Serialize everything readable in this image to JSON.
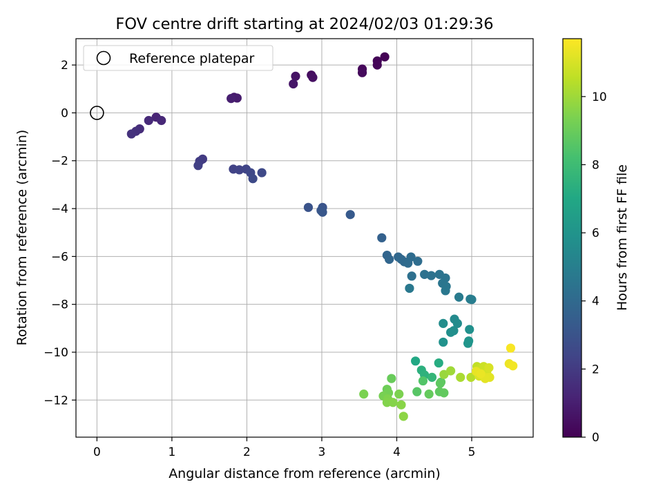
{
  "chart_data": {
    "type": "scatter",
    "title": "FOV centre drift starting at 2024/02/03 01:29:36",
    "xlabel": "Angular distance from reference (arcmin)",
    "ylabel": "Rotation from reference (arcmin)",
    "xlim": [
      -0.28,
      5.82
    ],
    "ylim": [
      -13.55,
      3.1
    ],
    "xticks": [
      0,
      1,
      2,
      3,
      4,
      5
    ],
    "yticks": [
      2,
      0,
      -2,
      -4,
      -6,
      -8,
      -10,
      -12
    ],
    "xtick_labels": [
      "0",
      "1",
      "2",
      "3",
      "4",
      "5"
    ],
    "ytick_labels": [
      "2",
      "0",
      "−2",
      "−4",
      "−6",
      "−8",
      "−10",
      "−12"
    ],
    "grid": true,
    "legend": {
      "position": "upper-left",
      "entries": [
        "Reference platepar"
      ]
    },
    "reference_point": {
      "name": "Reference platepar",
      "x": 0,
      "y": 0
    },
    "colorbar": {
      "label": "Hours from first FF file",
      "colormap": "viridis",
      "range": [
        0,
        11.7
      ],
      "ticks": [
        0,
        2,
        4,
        6,
        8,
        10
      ],
      "tick_labels": [
        "0",
        "2",
        "4",
        "6",
        "8",
        "10"
      ]
    },
    "series": [
      {
        "points": [
          [
            3.84,
            2.34,
            0.05
          ],
          [
            3.74,
            2.17,
            0.1
          ],
          [
            3.74,
            2.0,
            0.15
          ],
          [
            3.54,
            1.83,
            0.2
          ],
          [
            3.54,
            1.68,
            0.3
          ],
          [
            2.86,
            1.58,
            0.4
          ],
          [
            2.88,
            1.48,
            0.5
          ],
          [
            2.65,
            1.53,
            0.6
          ],
          [
            2.62,
            1.21,
            0.7
          ],
          [
            1.83,
            0.65,
            0.8
          ],
          [
            1.87,
            0.62,
            0.9
          ],
          [
            1.79,
            0.6,
            1.0
          ],
          [
            0.79,
            -0.18,
            1.2
          ],
          [
            0.86,
            -0.32,
            1.3
          ],
          [
            0.69,
            -0.32,
            1.4
          ],
          [
            0.57,
            -0.67,
            1.5
          ],
          [
            0.52,
            -0.77,
            1.6
          ],
          [
            0.46,
            -0.88,
            1.7
          ],
          [
            1.41,
            -1.93,
            2.0
          ],
          [
            1.37,
            -2.02,
            2.1
          ],
          [
            1.35,
            -2.2,
            2.2
          ],
          [
            1.82,
            -2.35,
            2.3
          ],
          [
            1.9,
            -2.38,
            2.35
          ],
          [
            1.99,
            -2.35,
            2.4
          ],
          [
            2.05,
            -2.5,
            2.5
          ],
          [
            2.2,
            -2.5,
            2.55
          ],
          [
            2.08,
            -2.75,
            2.6
          ],
          [
            2.82,
            -3.95,
            3.0
          ],
          [
            3.01,
            -3.95,
            3.05
          ],
          [
            2.99,
            -4.08,
            3.1
          ],
          [
            3.01,
            -4.15,
            3.15
          ],
          [
            3.38,
            -4.25,
            3.3
          ],
          [
            3.8,
            -5.22,
            3.6
          ],
          [
            3.87,
            -5.95,
            3.8
          ],
          [
            3.9,
            -6.12,
            3.85
          ],
          [
            4.02,
            -6.02,
            3.9
          ],
          [
            4.06,
            -6.12,
            3.95
          ],
          [
            4.1,
            -6.22,
            4.0
          ],
          [
            4.15,
            -6.28,
            4.05
          ],
          [
            4.19,
            -6.02,
            4.1
          ],
          [
            4.28,
            -6.2,
            4.15
          ],
          [
            4.2,
            -6.82,
            4.3
          ],
          [
            4.37,
            -6.75,
            4.35
          ],
          [
            4.46,
            -6.8,
            4.4
          ],
          [
            4.57,
            -6.75,
            4.45
          ],
          [
            4.65,
            -6.9,
            4.5
          ],
          [
            4.61,
            -7.12,
            4.55
          ],
          [
            4.66,
            -7.25,
            4.6
          ],
          [
            4.65,
            -7.43,
            4.65
          ],
          [
            4.17,
            -7.33,
            4.7
          ],
          [
            4.83,
            -7.7,
            4.8
          ],
          [
            4.98,
            -7.78,
            4.85
          ],
          [
            5.0,
            -7.8,
            4.9
          ],
          [
            4.77,
            -8.62,
            5.5
          ],
          [
            4.81,
            -8.8,
            5.6
          ],
          [
            4.62,
            -8.8,
            5.65
          ],
          [
            4.76,
            -9.1,
            5.7
          ],
          [
            4.72,
            -9.17,
            5.75
          ],
          [
            4.97,
            -9.05,
            5.8
          ],
          [
            4.62,
            -9.58,
            5.9
          ],
          [
            4.96,
            -9.53,
            6.0
          ],
          [
            4.95,
            -9.63,
            6.05
          ],
          [
            4.25,
            -10.37,
            7.0
          ],
          [
            4.56,
            -10.45,
            7.2
          ],
          [
            4.33,
            -10.75,
            7.4
          ],
          [
            4.37,
            -10.95,
            7.5
          ],
          [
            4.47,
            -11.05,
            7.7
          ],
          [
            4.35,
            -11.2,
            8.5
          ],
          [
            4.27,
            -11.65,
            8.6
          ],
          [
            4.59,
            -11.25,
            8.7
          ],
          [
            4.58,
            -11.3,
            8.75
          ],
          [
            4.57,
            -11.65,
            8.8
          ],
          [
            4.63,
            -11.7,
            8.85
          ],
          [
            4.43,
            -11.75,
            8.9
          ],
          [
            3.93,
            -11.1,
            9.0
          ],
          [
            3.87,
            -11.55,
            9.1
          ],
          [
            3.89,
            -11.7,
            9.2
          ],
          [
            3.82,
            -11.83,
            9.3
          ],
          [
            3.56,
            -11.75,
            9.35
          ],
          [
            4.03,
            -11.75,
            9.4
          ],
          [
            3.88,
            -11.95,
            9.45
          ],
          [
            3.87,
            -12.1,
            9.5
          ],
          [
            3.95,
            -12.1,
            9.55
          ],
          [
            4.06,
            -12.2,
            9.6
          ],
          [
            4.09,
            -12.68,
            9.7
          ],
          [
            4.63,
            -10.93,
            9.9
          ],
          [
            4.72,
            -10.78,
            10.0
          ],
          [
            4.85,
            -11.05,
            10.2
          ],
          [
            4.99,
            -11.05,
            10.4
          ],
          [
            5.07,
            -10.6,
            10.6
          ],
          [
            5.12,
            -10.65,
            10.7
          ],
          [
            5.16,
            -10.6,
            10.8
          ],
          [
            5.2,
            -10.85,
            10.9
          ],
          [
            5.23,
            -10.65,
            11.0
          ],
          [
            5.1,
            -11.0,
            11.05
          ],
          [
            5.15,
            -11.0,
            11.1
          ],
          [
            5.2,
            -11.05,
            11.15
          ],
          [
            5.24,
            -11.05,
            11.2
          ],
          [
            5.18,
            -11.1,
            11.25
          ],
          [
            5.06,
            -10.8,
            11.3
          ],
          [
            5.12,
            -10.9,
            11.35
          ],
          [
            5.5,
            -10.48,
            11.4
          ],
          [
            5.55,
            -10.57,
            11.5
          ],
          [
            5.52,
            -9.83,
            11.6
          ]
        ]
      }
    ]
  }
}
